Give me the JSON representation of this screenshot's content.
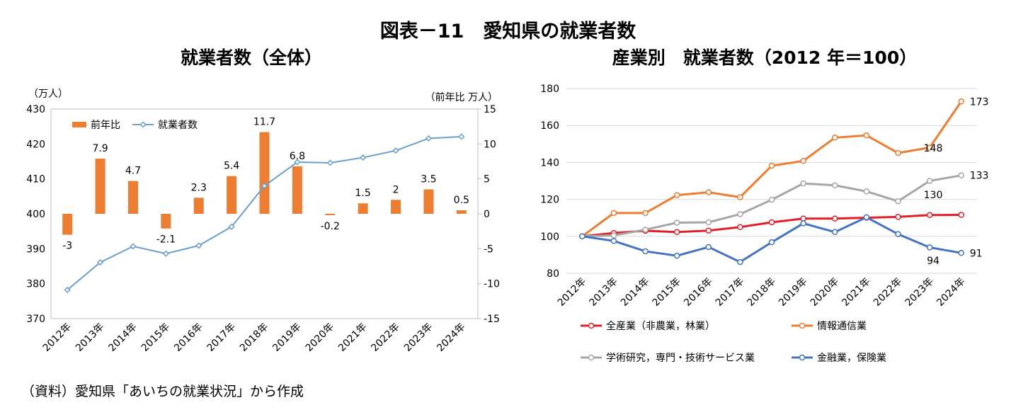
{
  "figure_title": "図表－11　愛知県の就業者数",
  "source_note": "（資料）愛知県「あいちの就業状況」から作成",
  "chart_data": [
    {
      "type": "bar",
      "title": "就業者数（全体）",
      "left_unit": "（万人）",
      "right_unit": "（前年比 万人）",
      "categories": [
        "2012年",
        "2013年",
        "2014年",
        "2015年",
        "2016年",
        "2017年",
        "2018年",
        "2019年",
        "2020年",
        "2021年",
        "2022年",
        "2023年",
        "2024年"
      ],
      "ylim_left": [
        370,
        430
      ],
      "yticks_left": [
        "370",
        "380",
        "390",
        "400",
        "410",
        "420",
        "430"
      ],
      "ylim_right": [
        -15,
        15
      ],
      "yticks_right": [
        "-15",
        "-10",
        "-5",
        "0",
        "5",
        "10",
        "15"
      ],
      "legend_position": "top-left",
      "series": [
        {
          "name": "前年比",
          "type": "bar",
          "axis": "right",
          "color": "#ED7D31",
          "values": [
            -3,
            7.9,
            4.7,
            -2.1,
            2.3,
            5.4,
            11.7,
            6.8,
            -0.2,
            1.5,
            2,
            3.5,
            0.5
          ],
          "labels": [
            "-3",
            "7.9",
            "4.7",
            "-2.1",
            "2.3",
            "5.4",
            "11.7",
            "6.8",
            "-0.2",
            "1.5",
            "2",
            "3.5",
            "0.5"
          ]
        },
        {
          "name": "就業者数",
          "type": "line",
          "axis": "left",
          "color": "#6A9FCF",
          "values": [
            378.2,
            386.1,
            390.7,
            388.6,
            390.9,
            396.3,
            408.0,
            414.8,
            414.6,
            416.1,
            418.1,
            421.6,
            422.1
          ]
        }
      ]
    },
    {
      "type": "line",
      "title": "産業別　就業者数（2012 年＝100）",
      "categories": [
        "2012年",
        "2013年",
        "2014年",
        "2015年",
        "2016年",
        "2017年",
        "2018年",
        "2019年",
        "2020年",
        "2021年",
        "2022年",
        "2023年",
        "2024年"
      ],
      "ylim": [
        80,
        180
      ],
      "yticks": [
        "80",
        "100",
        "120",
        "140",
        "160",
        "180"
      ],
      "legend_position": "bottom",
      "series": [
        {
          "name": "全産業（非農業，林業）",
          "color": "#E3202A",
          "values": [
            100,
            101.8,
            103.0,
            102.3,
            103.1,
            105.0,
            107.6,
            109.6,
            109.6,
            110.1,
            110.5,
            111.5,
            111.6
          ]
        },
        {
          "name": "情報通信業",
          "color": "#ED7D31",
          "values": [
            100,
            112.6,
            112.6,
            122.3,
            123.8,
            121.2,
            138.2,
            140.8,
            153.4,
            154.6,
            145.1,
            148,
            173
          ]
        },
        {
          "name": "学術研究，専門・技術サービス業",
          "color": "#A6A6A6",
          "values": [
            100,
            100.5,
            103.6,
            107.4,
            107.6,
            112.0,
            119.8,
            128.6,
            127.6,
            124.3,
            119.0,
            130,
            133
          ]
        },
        {
          "name": "金融業，保険業",
          "color": "#4472C4",
          "values": [
            100,
            97.5,
            91.9,
            89.5,
            94.2,
            86.1,
            96.8,
            107.0,
            102.3,
            110.3,
            101.2,
            94,
            91
          ]
        }
      ],
      "point_labels": [
        {
          "series": 1,
          "index": 12,
          "text": "173"
        },
        {
          "series": 1,
          "index": 11,
          "text": "148"
        },
        {
          "series": 2,
          "index": 12,
          "text": "133"
        },
        {
          "series": 2,
          "index": 11,
          "text": "130"
        },
        {
          "series": 3,
          "index": 11,
          "text": "94"
        },
        {
          "series": 3,
          "index": 12,
          "text": "91"
        }
      ]
    }
  ]
}
